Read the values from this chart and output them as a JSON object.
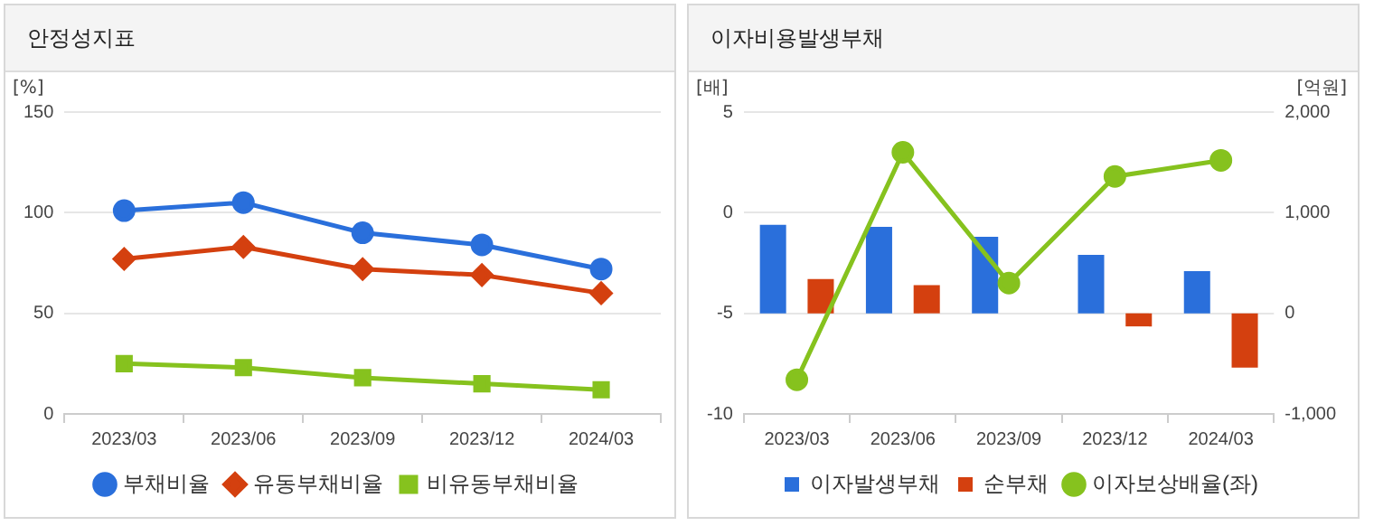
{
  "chart_data": [
    {
      "type": "line",
      "title": "안정성지표",
      "ylabel": "[%]",
      "categories": [
        "2023/03",
        "2023/06",
        "2023/09",
        "2023/12",
        "2024/03"
      ],
      "ylim": [
        0,
        150
      ],
      "yticks": [
        0,
        50,
        100,
        150
      ],
      "grid": "y",
      "legend": "bottom",
      "series": [
        {
          "name": "부채비율",
          "color": "#2a6fdb",
          "marker": "circle",
          "values": [
            101,
            105,
            90,
            84,
            72
          ]
        },
        {
          "name": "유동부채비율",
          "color": "#d4400f",
          "marker": "diamond",
          "values": [
            77,
            83,
            72,
            69,
            60
          ]
        },
        {
          "name": "비유동부채비율",
          "color": "#86c21e",
          "marker": "square",
          "values": [
            25,
            23,
            18,
            15,
            12
          ]
        }
      ]
    },
    {
      "type": "bar",
      "title": "이자비용발생부채",
      "ylabel": "[배]",
      "y2label": "[억원]",
      "categories": [
        "2023/03",
        "2023/06",
        "2023/09",
        "2023/12",
        "2024/03"
      ],
      "ylim": [
        -10,
        5
      ],
      "yticks": [
        -10,
        -5,
        0,
        5
      ],
      "y2lim": [
        -1000,
        2000
      ],
      "y2ticks": [
        {
          "value": -1000,
          "label": "-1,000"
        },
        0,
        {
          "value": 1000,
          "label": "1,000"
        },
        {
          "value": 2000,
          "label": "2,000"
        }
      ],
      "grid": "y",
      "legend": "bottom",
      "series": [
        {
          "name": "이자발생부채",
          "axis": "y2",
          "color": "#2a6fdb",
          "values": [
            880,
            860,
            760,
            580,
            420
          ]
        },
        {
          "name": "순부채",
          "axis": "y2",
          "color": "#d4400f",
          "values": [
            340,
            280,
            null,
            -130,
            -540
          ]
        },
        {
          "name": "이자보상배율(좌)",
          "type": "line",
          "axis": "y",
          "color": "#86c21e",
          "marker": "circle",
          "values": [
            -8.3,
            3,
            -3.5,
            1.8,
            2.6
          ]
        }
      ]
    }
  ]
}
